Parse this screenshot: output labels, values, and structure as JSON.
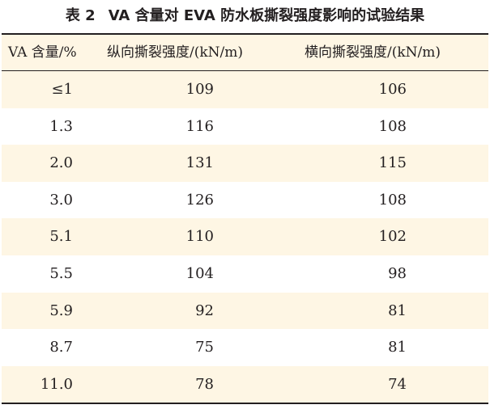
{
  "caption": {
    "number": "表 2",
    "title": "VA 含量对 EVA 防水板撕裂强度影响的试验结果"
  },
  "table": {
    "headers": [
      "VA 含量/%",
      "纵向撕裂强度/(kN/m)",
      "横向撕裂强度/(kN/m)"
    ],
    "rows": [
      [
        "≤1",
        "109",
        "106"
      ],
      [
        "1.3",
        "116",
        "108"
      ],
      [
        "2.0",
        "131",
        "115"
      ],
      [
        "3.0",
        "126",
        "108"
      ],
      [
        "5.1",
        "110",
        "102"
      ],
      [
        "5.5",
        "104",
        "98"
      ],
      [
        "5.9",
        "92",
        "81"
      ],
      [
        "8.7",
        "75",
        "81"
      ],
      [
        "11.0",
        "78",
        "74"
      ]
    ]
  },
  "colors": {
    "row_tint": "#fef6e4",
    "rule": "#231f20",
    "text": "#231f20"
  }
}
